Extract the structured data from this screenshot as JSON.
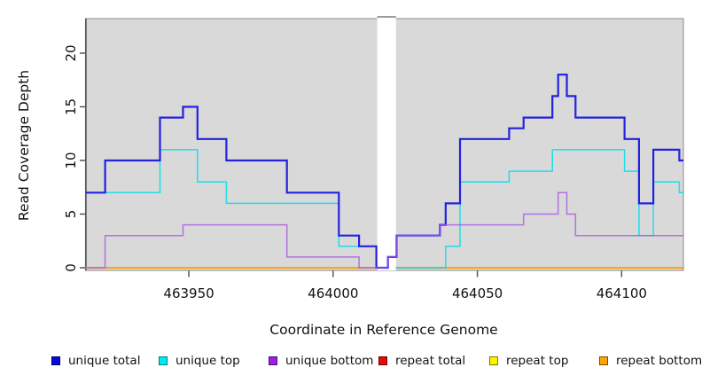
{
  "chart_data": {
    "type": "line",
    "subtype": "step",
    "title": "",
    "xlabel": "Coordinate in Reference Genome",
    "ylabel": "Read Coverage Depth",
    "x_ticks": [
      463950,
      464000,
      464050,
      464100
    ],
    "y_ticks": [
      0,
      5,
      10,
      15,
      20
    ],
    "xlim": {
      "min": 463914.2,
      "max": 464121.4
    },
    "ylim": {
      "min": -0.25,
      "max": 23.22
    },
    "plot_bg": "#d9d9d9",
    "mask_region": {
      "from": 464015.3,
      "to": 464021.8,
      "color": "#ffffff"
    },
    "series": [
      {
        "name": "repeat-total",
        "label": "repeat total",
        "color": "#e02020",
        "width": 1.4,
        "opacity": 1,
        "masked": true,
        "steps": [
          [
            463914,
            0
          ]
        ]
      },
      {
        "name": "repeat-top",
        "label": "repeat top",
        "color": "#ffe600",
        "width": 1.4,
        "opacity": 1,
        "masked": true,
        "steps": [
          [
            463914,
            0
          ]
        ]
      },
      {
        "name": "repeat-bottom",
        "label": "repeat bottom",
        "color": "#ffa405",
        "width": 1.8,
        "opacity": 1,
        "masked": true,
        "steps": [
          [
            463914,
            0
          ]
        ]
      },
      {
        "name": "unique-top",
        "label": "unique top",
        "color": "#00dcec",
        "width": 1.5,
        "opacity": 0.85,
        "masked": true,
        "steps": [
          [
            463914,
            7
          ],
          [
            463940,
            11
          ],
          [
            463953,
            8
          ],
          [
            463963,
            6
          ],
          [
            464002,
            2
          ],
          [
            464015,
            0
          ],
          [
            464039,
            2
          ],
          [
            464044,
            8
          ],
          [
            464061,
            9
          ],
          [
            464076,
            11
          ],
          [
            464101,
            9
          ],
          [
            464106,
            3
          ],
          [
            464111,
            8
          ],
          [
            464120,
            7
          ]
        ]
      },
      {
        "name": "unique-total",
        "label": "unique total",
        "color": "#2222df",
        "width": 2.2,
        "opacity": 1,
        "masked": false,
        "steps": [
          [
            463914,
            7
          ],
          [
            463921,
            10
          ],
          [
            463940,
            14
          ],
          [
            463948,
            15
          ],
          [
            463953,
            12
          ],
          [
            463963,
            10
          ],
          [
            463984,
            7
          ],
          [
            464002,
            3
          ],
          [
            464009,
            2
          ],
          [
            464015,
            0
          ],
          [
            464019,
            1
          ],
          [
            464022,
            3
          ],
          [
            464037,
            4
          ],
          [
            464039,
            6
          ],
          [
            464044,
            12
          ],
          [
            464061,
            13
          ],
          [
            464066,
            14
          ],
          [
            464076,
            16
          ],
          [
            464078,
            18
          ],
          [
            464081,
            16
          ],
          [
            464084,
            14
          ],
          [
            464101,
            12
          ],
          [
            464106,
            6
          ],
          [
            464111,
            11
          ],
          [
            464120,
            10
          ]
        ]
      },
      {
        "name": "unique-bottom",
        "label": "unique bottom",
        "color": "#a558e3",
        "width": 1.5,
        "opacity": 0.8,
        "masked": false,
        "steps": [
          [
            463914,
            0
          ],
          [
            463921,
            3
          ],
          [
            463948,
            4
          ],
          [
            463984,
            1
          ],
          [
            464009,
            0
          ],
          [
            464019,
            1
          ],
          [
            464022,
            3
          ],
          [
            464037,
            4
          ],
          [
            464066,
            5
          ],
          [
            464078,
            7
          ],
          [
            464081,
            5
          ],
          [
            464084,
            3
          ]
        ]
      }
    ]
  },
  "legend": {
    "items": [
      {
        "label": "unique total",
        "fill": "#0909dd",
        "border": "#00005a"
      },
      {
        "label": "unique top",
        "fill": "#00e8f0",
        "border": "#007f86"
      },
      {
        "label": "unique bottom",
        "fill": "#9c1fe8",
        "border": "#4d0f73"
      },
      {
        "label": "repeat total",
        "fill": "#e80909",
        "border": "#6b0000"
      },
      {
        "label": "repeat top",
        "fill": "#fff200",
        "border": "#7a7a00"
      },
      {
        "label": "repeat bottom",
        "fill": "#ffa405",
        "border": "#7a5200"
      }
    ]
  }
}
